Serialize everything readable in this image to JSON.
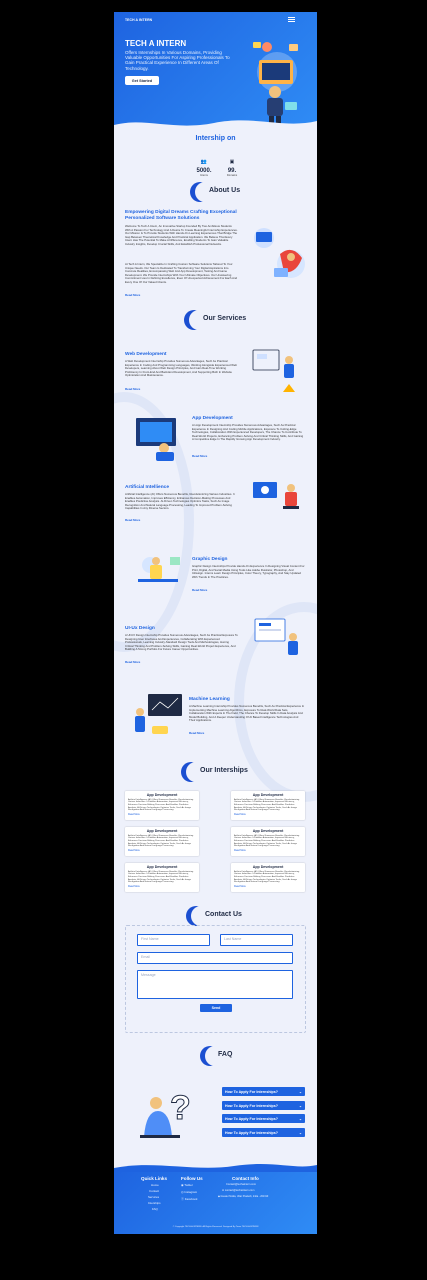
{
  "header": {
    "brand": "TECH A INTERN"
  },
  "hero": {
    "title": "TECH A INTERN",
    "subtitle": "Offers Internships In Various Domains, Providing Valuable Opportunities For Aspiring Professionals To Gain Practical Experience In Different Areas Of Technology.",
    "button": "Get Started"
  },
  "stats": {
    "title": "Intership on",
    "items": [
      {
        "value": "5000.",
        "label": "Interns"
      },
      {
        "value": "99.",
        "label": "Domains"
      }
    ]
  },
  "about": {
    "heading": "About Us",
    "title": "Empowering Digital Dreams Crafting Exceptional Personalized Software Solutions",
    "para1": "Welcome To Tech A Intern, An Innovative Startup Founded By Two Ambitious Students With A Passion For Technology And A Desire To Create Meaningful Internship Experiences. Our Mission Is To Provide Students With Hands-On Learning Experiences That Bridge The Gap Between Theoretical Knowledge And Practical Application. We Believe That Every Intern Has The Potential To Make A Difference, Enabling Students To Gain Valuable Industry Insights, Develop Crucial Skills, And Establish Professional Networks.",
    "para2": "At Tech A Intern, We Specialize In Crafting Custom Software Solutions Tailored To Your Unique Needs. Our Team Is Dedicated To Transforming Your Digital Aspirations Into Concrete Realities, Encompassing Web And App Development, Testing And Game Development. We Provide Internships With Your Ultimate Objectives. Our Unwavering Commitment Lies In Defining Excellence, Even Of Unexpected Achievement For Each And Every One Of Our Valued Clients.",
    "read_more": "Read More"
  },
  "services": {
    "heading": "Our Services",
    "items": [
      {
        "title": "Web Development",
        "text": "A Web Development Internship Provides Numerous Advantages, Such As Practical Experience In Coding And Programming Languages, Working Alongside Experienced Web Developers, Learning About Web Design Principles, And Gain Real-Time Working Proficiency In Front-End And Back-End Development, And Supporting Both In Website Optimization And Maintenance.",
        "read_more": "Read More"
      },
      {
        "title": "App Development",
        "text": "An App Development Internship Provides Numerous Advantages, Such As Practical Experience In Designing And Coding Mobile Applications, Exposure To Cutting-Edge Technologies, Collaboration With Experienced Developers, The Chance To Contribute To Real-World Projects, Enhancing Problem-Solving And Critical Thinking Skills, And Gaining A Competitive Edge In The Rapidly Growing App Development Industry.",
        "read_more": "Read More"
      },
      {
        "title": "Artificial Intellience",
        "text": "Artificial Intelligence (AI) Offers Numerous Benefits, Revolutionizing Various Industries. It Enables Automation, Improves Efficiency, Enhances Decision-Making Processes And Enables Predictive Analysis. AI-Driven Technologies Optimize Tasks, Such As Image Recognition And Natural Language Processing, Leading To Improved Problem-Solving Capabilities In Any Diverse Sectors.",
        "read_more": "Read More"
      },
      {
        "title": "Graphic Design",
        "text": "Graphic Design Internships Provide Hands-On Experience In Designing Visual Content For Print, Digital, And Social Media Using Tools Like Adobe Illustrator, Photoshop, And InDesign. Interns Learn Design Principles, Color Theory, Typography, And Stay Updated With Trends In The Practices.",
        "read_more": "Read More"
      },
      {
        "title": "UI-Ux Design",
        "text": "A UI/UX Design Internship Provides Numerous Advantages, Such As Practical Exposure To Designing User Interfaces And Experiences, Collaborating With Experienced Professionals, Learning Industry-Standard Design Tools And Methodologies, Honing Critical Thinking And Problem-Solving Skills, Gaining Real-World Project Experience, And Building A Strong Portfolio For Future Career Opportunities.",
        "read_more": "Read More"
      },
      {
        "title": "Machine Learning",
        "text": "A Machine Learning Internship Provides Numerous Benefits, Such As Practical Experience In Implementing Machine Learning Algorithms, Exposure To Real-World Data Sets, Collaboration With Experts In The Field, The Chance To Develop Skills In Data Analysis And Model Building, And A Deeper Understanding Of AI Based Intelligence Technologies And Their Applications.",
        "read_more": "Read More"
      }
    ]
  },
  "internships": {
    "heading": "Our Interships",
    "cards": [
      {
        "title": "App Development",
        "text": "Artificial Intelligence (AI) Offers Numerous Benefits, Revolutionizing Various Industries. It Enables Automation, Improves Efficiency, Enhances Decision-Making Processes And Enables Predictive Analysis. AI-Driven Technologies Optimize Tasks, Such As Image Recognition And Natural Language Processing.",
        "read_more": "Read More"
      },
      {
        "title": "App Development",
        "text": "Artificial Intelligence (AI) Offers Numerous Benefits, Revolutionizing Various Industries. It Enables Automation, Improves Efficiency, Enhances Decision-Making Processes And Enables Predictive Analysis. AI-Driven Technologies Optimize Tasks, Such As Image Recognition And Natural Language Processing.",
        "read_more": "Read More"
      },
      {
        "title": "App Development",
        "text": "Artificial Intelligence (AI) Offers Numerous Benefits, Revolutionizing Various Industries. It Enables Automation, Improves Efficiency, Enhances Decision-Making Processes And Enables Predictive Analysis. AI-Driven Technologies Optimize Tasks, Such As Image Recognition And Natural Language Processing.",
        "read_more": "Read More"
      },
      {
        "title": "App Development",
        "text": "Artificial Intelligence (AI) Offers Numerous Benefits, Revolutionizing Various Industries. It Enables Automation, Improves Efficiency, Enhances Decision-Making Processes And Enables Predictive Analysis. AI-Driven Technologies Optimize Tasks, Such As Image Recognition And Natural Language Processing.",
        "read_more": "Read More"
      },
      {
        "title": "App Development",
        "text": "Artificial Intelligence (AI) Offers Numerous Benefits, Revolutionizing Various Industries. It Enables Automation, Improves Efficiency, Enhances Decision-Making Processes And Enables Predictive Analysis. AI-Driven Technologies Optimize Tasks, Such As Image Recognition And Natural Language Processing.",
        "read_more": "Read More"
      },
      {
        "title": "App Development",
        "text": "Artificial Intelligence (AI) Offers Numerous Benefits, Revolutionizing Various Industries. It Enables Automation, Improves Efficiency, Enhances Decision-Making Processes And Enables Predictive Analysis. AI-Driven Technologies Optimize Tasks, Such As Image Recognition And Natural Language Processing.",
        "read_more": "Read More"
      }
    ]
  },
  "contact": {
    "heading": "Contact Us",
    "first_name": "First Name",
    "last_name": "Last Name",
    "email": "Email",
    "message": "Message",
    "send": "Send"
  },
  "faq": {
    "heading": "FAQ",
    "items": [
      "How To Apply For Internships?",
      "How To Apply For Internships?",
      "How To Apply For Internships?",
      "How To Apply For Internships?"
    ]
  },
  "footer": {
    "quick_links_title": "Quick Links",
    "quick_links": [
      "Home",
      "Contact",
      "Services",
      "Interships",
      "FAQ"
    ],
    "follow_title": "Follow Us",
    "follow": [
      "Twitter",
      "Instagram",
      "Facebook"
    ],
    "contact_title": "Contact Info",
    "contact": [
      "Contact@techaintern.com",
      "contact@techaintern.com",
      "Greater Noida, Uttar Pradesh, India - 201310"
    ],
    "copyright": "© Copyright TECH A INTERN. All Rights Reserved. Designed By Team TECH A INTERN"
  },
  "colors": {
    "primary": "#1e63e0",
    "accent": "#2f8cf5",
    "background": "#eef1fb",
    "dark": "#1b4fd1"
  }
}
